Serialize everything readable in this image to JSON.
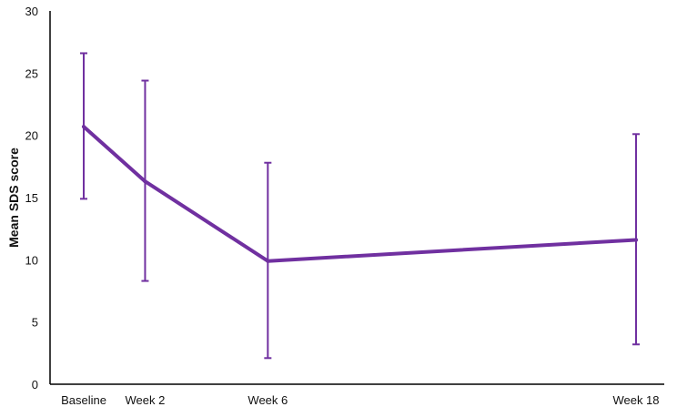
{
  "chart_data": {
    "type": "line",
    "title": "",
    "xlabel": "",
    "ylabel": "Mean SDS score",
    "ylim": [
      0,
      30
    ],
    "yticks": [
      0,
      5,
      10,
      15,
      20,
      25,
      30
    ],
    "x": [
      0,
      2,
      6,
      18
    ],
    "categories": [
      "Baseline",
      "Week 2",
      "Week 6",
      "Week 18"
    ],
    "grid": false,
    "legend": "none",
    "colors": {
      "series": "#7030a0",
      "axis": "#000000",
      "text": "#111111"
    },
    "series": [
      {
        "values": [
          20.7,
          16.3,
          9.9,
          11.6
        ],
        "error_low": [
          14.9,
          8.3,
          2.1,
          3.2
        ],
        "error_high": [
          26.6,
          24.4,
          17.8,
          20.1
        ]
      }
    ]
  }
}
